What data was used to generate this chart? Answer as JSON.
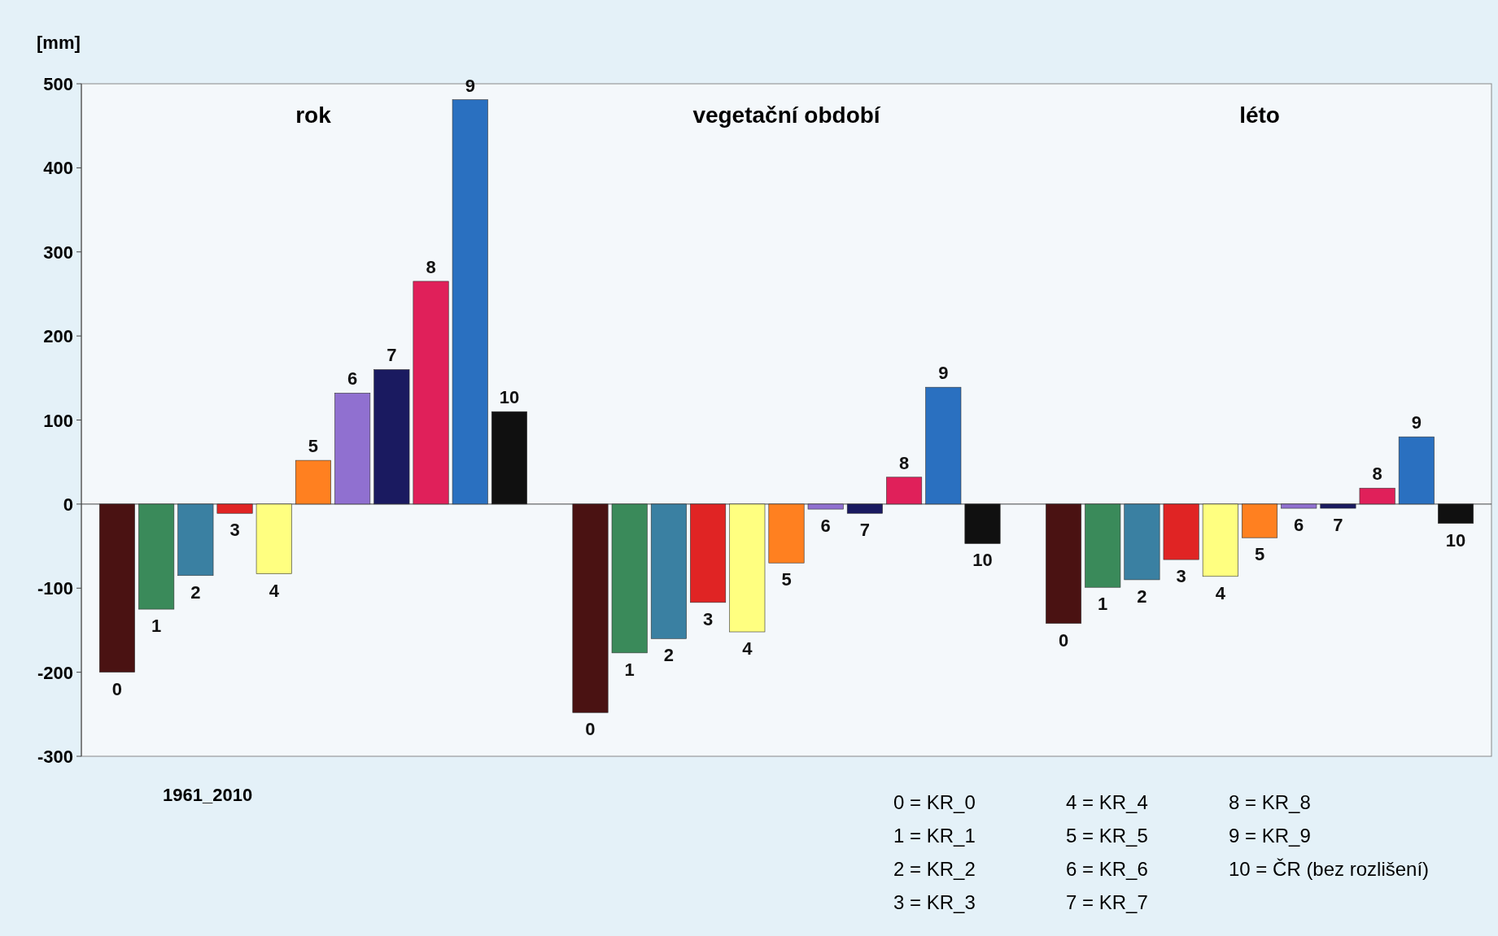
{
  "chart_data": {
    "type": "bar",
    "ylabel": "[mm]",
    "categories": [
      "rok",
      "vegetační období",
      "léto"
    ],
    "ylim": [
      -300,
      500
    ],
    "yticks": [
      -300,
      -200,
      -100,
      0,
      100,
      200,
      300,
      400,
      500
    ],
    "series": [
      {
        "name": "0",
        "color": "#4a1212",
        "values": [
          -200,
          -248,
          -142
        ]
      },
      {
        "name": "1",
        "color": "#3a8a5a",
        "values": [
          -125,
          -177,
          -99
        ]
      },
      {
        "name": "2",
        "color": "#3a80a2",
        "values": [
          -85,
          -160,
          -90
        ]
      },
      {
        "name": "3",
        "color": "#e02424",
        "values": [
          -11,
          -117,
          -66
        ]
      },
      {
        "name": "4",
        "color": "#ffff80",
        "values": [
          -83,
          -152,
          -86
        ]
      },
      {
        "name": "5",
        "color": "#ff8020",
        "values": [
          52,
          -70,
          -40
        ]
      },
      {
        "name": "6",
        "color": "#9070d0",
        "values": [
          132,
          -6,
          -5
        ]
      },
      {
        "name": "7",
        "color": "#1a1a60",
        "values": [
          160,
          -11,
          -5
        ]
      },
      {
        "name": "8",
        "color": "#e0205a",
        "values": [
          265,
          32,
          19
        ]
      },
      {
        "name": "9",
        "color": "#2a70c0",
        "values": [
          481,
          139,
          80
        ]
      },
      {
        "name": "10",
        "color": "#101010",
        "values": [
          110,
          -47,
          -23
        ]
      }
    ],
    "annotations": [
      "1961_2010",
      "0 = KR_0",
      "1 = KR_1",
      "2 = KR_2",
      "3 = KR_3",
      "4 = KR_4",
      "5 = KR_5",
      "6 = KR_6",
      "7 = KR_7",
      "8 = KR_8",
      "9 = KR_9",
      "10 = ČR (bez rozlišení)"
    ]
  }
}
